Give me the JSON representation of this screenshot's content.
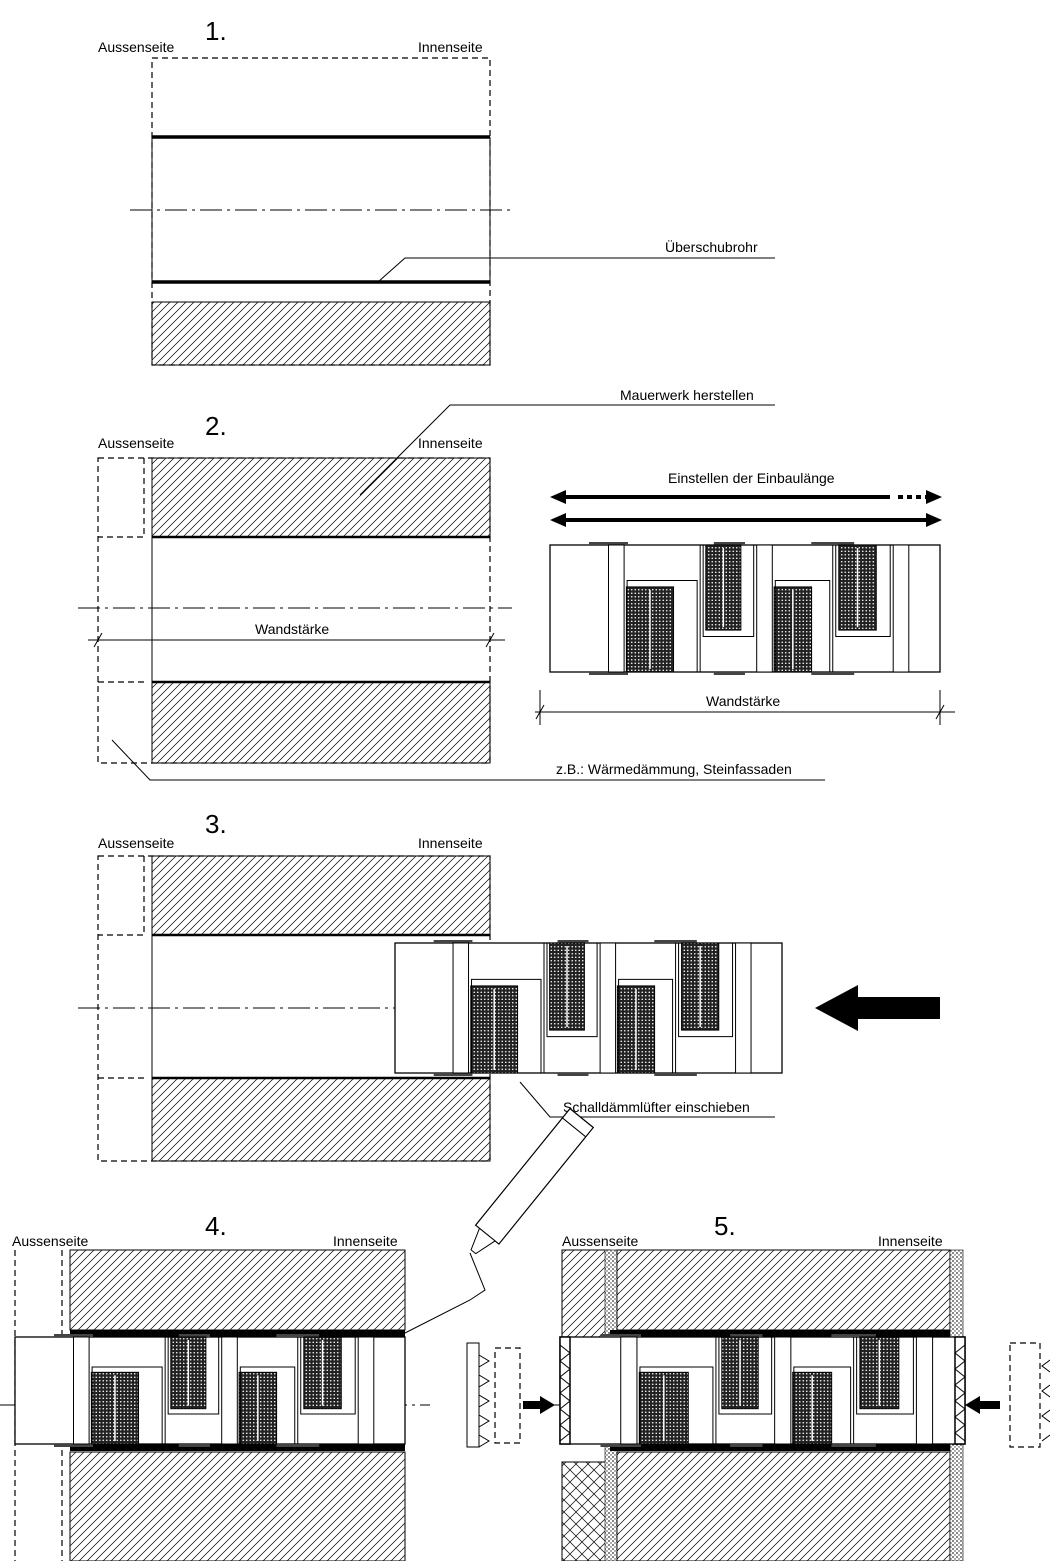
{
  "steps": [
    {
      "number": "1.",
      "outside": "Aussenseite",
      "inside": "Innenseite",
      "annotations": [
        "Überschubrohr"
      ]
    },
    {
      "number": "2.",
      "outside": "Aussenseite",
      "inside": "Innenseite",
      "annotations": [
        "Mauerwerk herstellen",
        "Wandstärke",
        "Einstellen der Einbaulänge",
        "Wandstärke",
        "z.B.: Wärmedämmung, Steinfassaden"
      ]
    },
    {
      "number": "3.",
      "outside": "Aussenseite",
      "inside": "Innenseite",
      "annotations": [
        "Schalldämmlüfter einschieben"
      ]
    },
    {
      "number": "4.",
      "outside": "Aussenseite",
      "inside": "Innenseite",
      "annotations": []
    },
    {
      "number": "5.",
      "outside": "Aussenseite",
      "inside": "Innenseite",
      "annotations": []
    }
  ]
}
